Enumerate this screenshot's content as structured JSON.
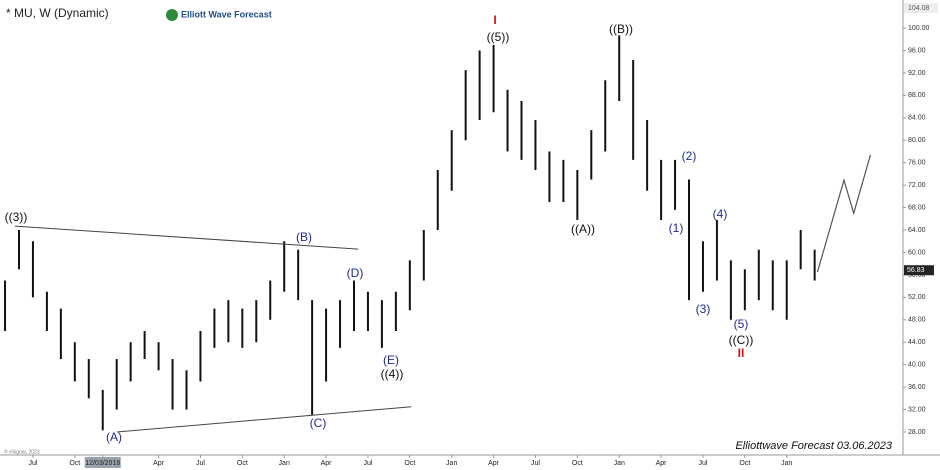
{
  "chart_data": {
    "type": "range-bar",
    "title": "* MU, W (Dynamic)",
    "brand": "Elliott Wave Forecast",
    "footer": "Elliottwave Forecast 03.06.2023",
    "credit": "© eSignal, 2023",
    "top_price": "104.08",
    "last_price": {
      "value": 56.83,
      "label": "56.83"
    },
    "color": "#111111",
    "x": [
      4,
      5,
      6,
      7,
      8,
      9,
      10,
      11,
      12,
      13,
      14,
      15,
      16,
      17,
      18,
      19,
      20,
      21,
      22,
      23,
      24,
      25,
      26,
      27,
      28,
      29,
      30,
      31,
      32,
      33,
      34,
      35,
      36,
      37,
      38,
      39,
      40,
      41,
      42,
      43,
      44,
      45,
      46,
      47,
      48,
      49,
      50,
      51,
      52,
      53,
      54,
      55,
      56,
      57,
      58,
      59,
      60,
      61,
      62
    ],
    "highs": [
      55,
      64,
      62,
      53,
      50,
      44,
      41,
      35.5,
      41,
      44,
      46,
      44,
      41,
      39,
      46,
      50,
      51.5,
      50,
      51.5,
      55,
      62,
      60.5,
      51.5,
      50,
      51.5,
      55,
      53,
      51.5,
      53,
      58.6,
      64,
      74.7,
      81.8,
      92.5,
      96,
      97,
      89,
      87,
      83.6,
      78,
      76.5,
      74.7,
      81.8,
      90.7,
      98.7,
      94.3,
      83.6,
      76.5,
      76.5,
      73,
      62,
      65.8,
      58.6,
      57,
      60.5,
      58.6,
      58.6,
      64,
      60.5
    ],
    "lows": [
      46,
      57,
      52,
      46,
      41,
      37,
      34,
      28.3,
      32,
      37,
      41,
      39,
      32,
      32,
      37,
      43,
      44,
      43,
      44,
      48,
      53,
      51.5,
      31,
      37,
      43,
      46,
      46,
      43,
      46,
      49.7,
      55,
      64,
      71,
      80,
      83.6,
      85,
      78,
      76.5,
      74.7,
      69,
      69,
      65.8,
      73,
      78,
      87,
      76.5,
      71,
      65.8,
      67.6,
      51.5,
      53,
      55,
      48,
      49.7,
      51.5,
      49.7,
      48,
      57,
      55
    ],
    "trendlines": [
      {
        "x": [
          4.7,
          29.3
        ],
        "values": [
          64.7,
          60.6
        ]
      },
      {
        "x": [
          12,
          33.1
        ],
        "values": [
          28,
          32.5
        ]
      }
    ],
    "projection": {
      "color": "#555555",
      "x": [
        62.2,
        64.1,
        64.8,
        66
      ],
      "values": [
        56.5,
        72.9,
        67,
        77.4
      ]
    },
    "wave_labels": [
      {
        "text": "((3))",
        "color": "#111111"
      },
      {
        "text": "(A)",
        "color": "#1f2a8c"
      },
      {
        "text": "(B)",
        "color": "#1f2a8c"
      },
      {
        "text": "(C)",
        "color": "#1f2a8c"
      },
      {
        "text": "(D)",
        "color": "#1f2a8c"
      },
      {
        "text": "(E)",
        "color": "#1f2a8c"
      },
      {
        "text": "((4))",
        "color": "#111111"
      },
      {
        "text": "I",
        "color": "#d0161c"
      },
      {
        "text": "((5))",
        "color": "#111111"
      },
      {
        "text": "((A))",
        "color": "#111111"
      },
      {
        "text": "((B))",
        "color": "#111111"
      },
      {
        "text": "(1)",
        "color": "#1f2a8c"
      },
      {
        "text": "(2)",
        "color": "#1f2a8c"
      },
      {
        "text": "(3)",
        "color": "#1f2a8c"
      },
      {
        "text": "(4)",
        "color": "#1f2a8c"
      },
      {
        "text": "(5)",
        "color": "#1f2a8c"
      },
      {
        "text": "((C))",
        "color": "#111111"
      },
      {
        "text": "II",
        "color": "#d0161c"
      }
    ],
    "xlim": [
      3.64,
      68.33
    ],
    "xticks": [
      {
        "value": 6,
        "label": "Jul"
      },
      {
        "value": 9,
        "label": "Oct"
      },
      {
        "value": 11,
        "label": "12/03/2018"
      },
      {
        "value": 15,
        "label": "Apr"
      },
      {
        "value": 18,
        "label": "Jul"
      },
      {
        "value": 21,
        "label": "Oct"
      },
      {
        "value": 24,
        "label": "Jan"
      },
      {
        "value": 27,
        "label": "Apr"
      },
      {
        "value": 30,
        "label": "Jul"
      },
      {
        "value": 33,
        "label": "Oct"
      },
      {
        "value": 36,
        "label": "Jan"
      },
      {
        "value": 39,
        "label": "Apr"
      },
      {
        "value": 42,
        "label": "Jul"
      },
      {
        "value": 45,
        "label": "Oct"
      },
      {
        "value": 48,
        "label": "Jan"
      },
      {
        "value": 51,
        "label": "Apr"
      },
      {
        "value": 54,
        "label": "Jul"
      },
      {
        "value": 57,
        "label": "Oct"
      },
      {
        "value": 60,
        "label": "Jan"
      }
    ],
    "ylim": [
      23.9,
      105
    ],
    "yticks": [
      {
        "value": 28,
        "label": "28.00"
      },
      {
        "value": 32,
        "label": "32.00"
      },
      {
        "value": 36,
        "label": "36.00"
      },
      {
        "value": 40,
        "label": "40.00"
      },
      {
        "value": 44,
        "label": "44.00"
      },
      {
        "value": 48,
        "label": "48.00"
      },
      {
        "value": 52,
        "label": "52.00"
      },
      {
        "value": 56,
        "label": "56.00"
      },
      {
        "value": 60,
        "label": "60.00"
      },
      {
        "value": 64,
        "label": "64.00"
      },
      {
        "value": 68,
        "label": "68.00"
      },
      {
        "value": 72,
        "label": "72.00"
      },
      {
        "value": 76,
        "label": "76.00"
      },
      {
        "value": 80,
        "label": "80.00"
      },
      {
        "value": 84,
        "label": "84.00"
      },
      {
        "value": 88,
        "label": "88.00"
      },
      {
        "value": 92,
        "label": "92.00"
      },
      {
        "value": 96,
        "label": "96.00"
      },
      {
        "value": 100,
        "label": "100.00"
      }
    ]
  }
}
